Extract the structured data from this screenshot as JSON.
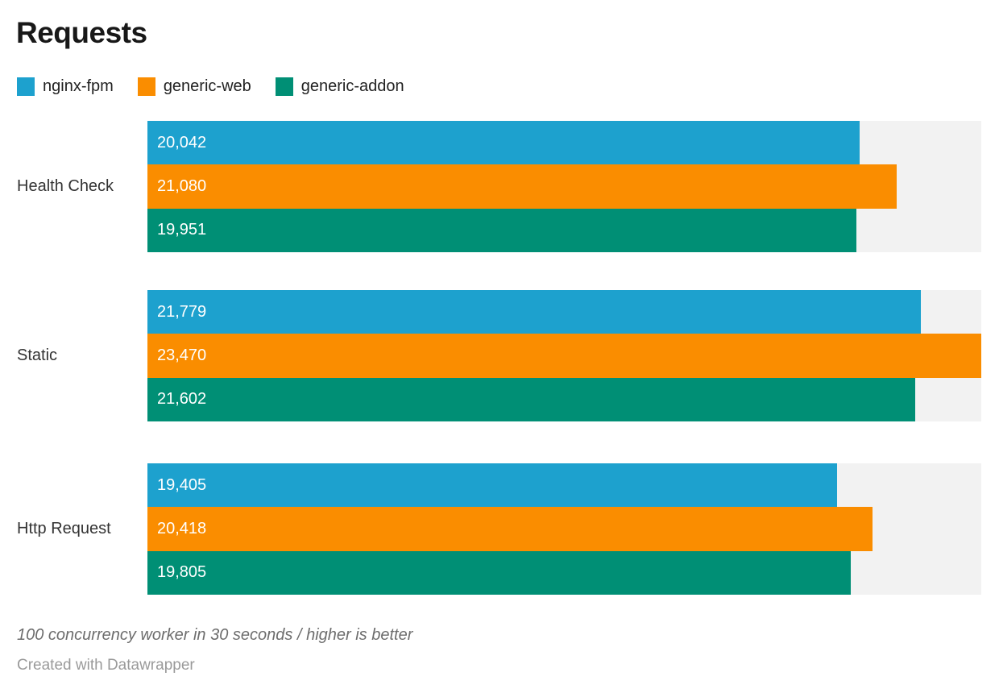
{
  "title": "Requests",
  "legend": [
    {
      "label": "nginx-fpm",
      "color": "#1DA1CE"
    },
    {
      "label": "generic-web",
      "color": "#FA8D00"
    },
    {
      "label": "generic-addon",
      "color": "#008F75"
    }
  ],
  "chart_data": {
    "type": "bar",
    "orientation": "horizontal",
    "title": "Requests",
    "categories": [
      "Health Check",
      "Static",
      "Http Request"
    ],
    "series": [
      {
        "name": "nginx-fpm",
        "color": "#1DA1CE",
        "values": [
          20042,
          21779,
          19405
        ],
        "labels": [
          "20,042",
          "21,779",
          "19,405"
        ]
      },
      {
        "name": "generic-web",
        "color": "#FA8D00",
        "values": [
          21080,
          23470,
          20418
        ],
        "labels": [
          "21,080",
          "23,470",
          "20,418"
        ]
      },
      {
        "name": "generic-addon",
        "color": "#008F75",
        "values": [
          19951,
          21602,
          19805
        ],
        "labels": [
          "19,951",
          "21,602",
          "19,805"
        ]
      }
    ],
    "xlim": [
      0,
      23470
    ],
    "value_labels": "inside-left",
    "track_color": "#F2F2F2",
    "grid": false,
    "axis_ticks": false,
    "legend_position": "top"
  },
  "footer": {
    "note": "100 concurrency worker in 30 seconds / higher is better",
    "credit": "Created with Datawrapper"
  }
}
